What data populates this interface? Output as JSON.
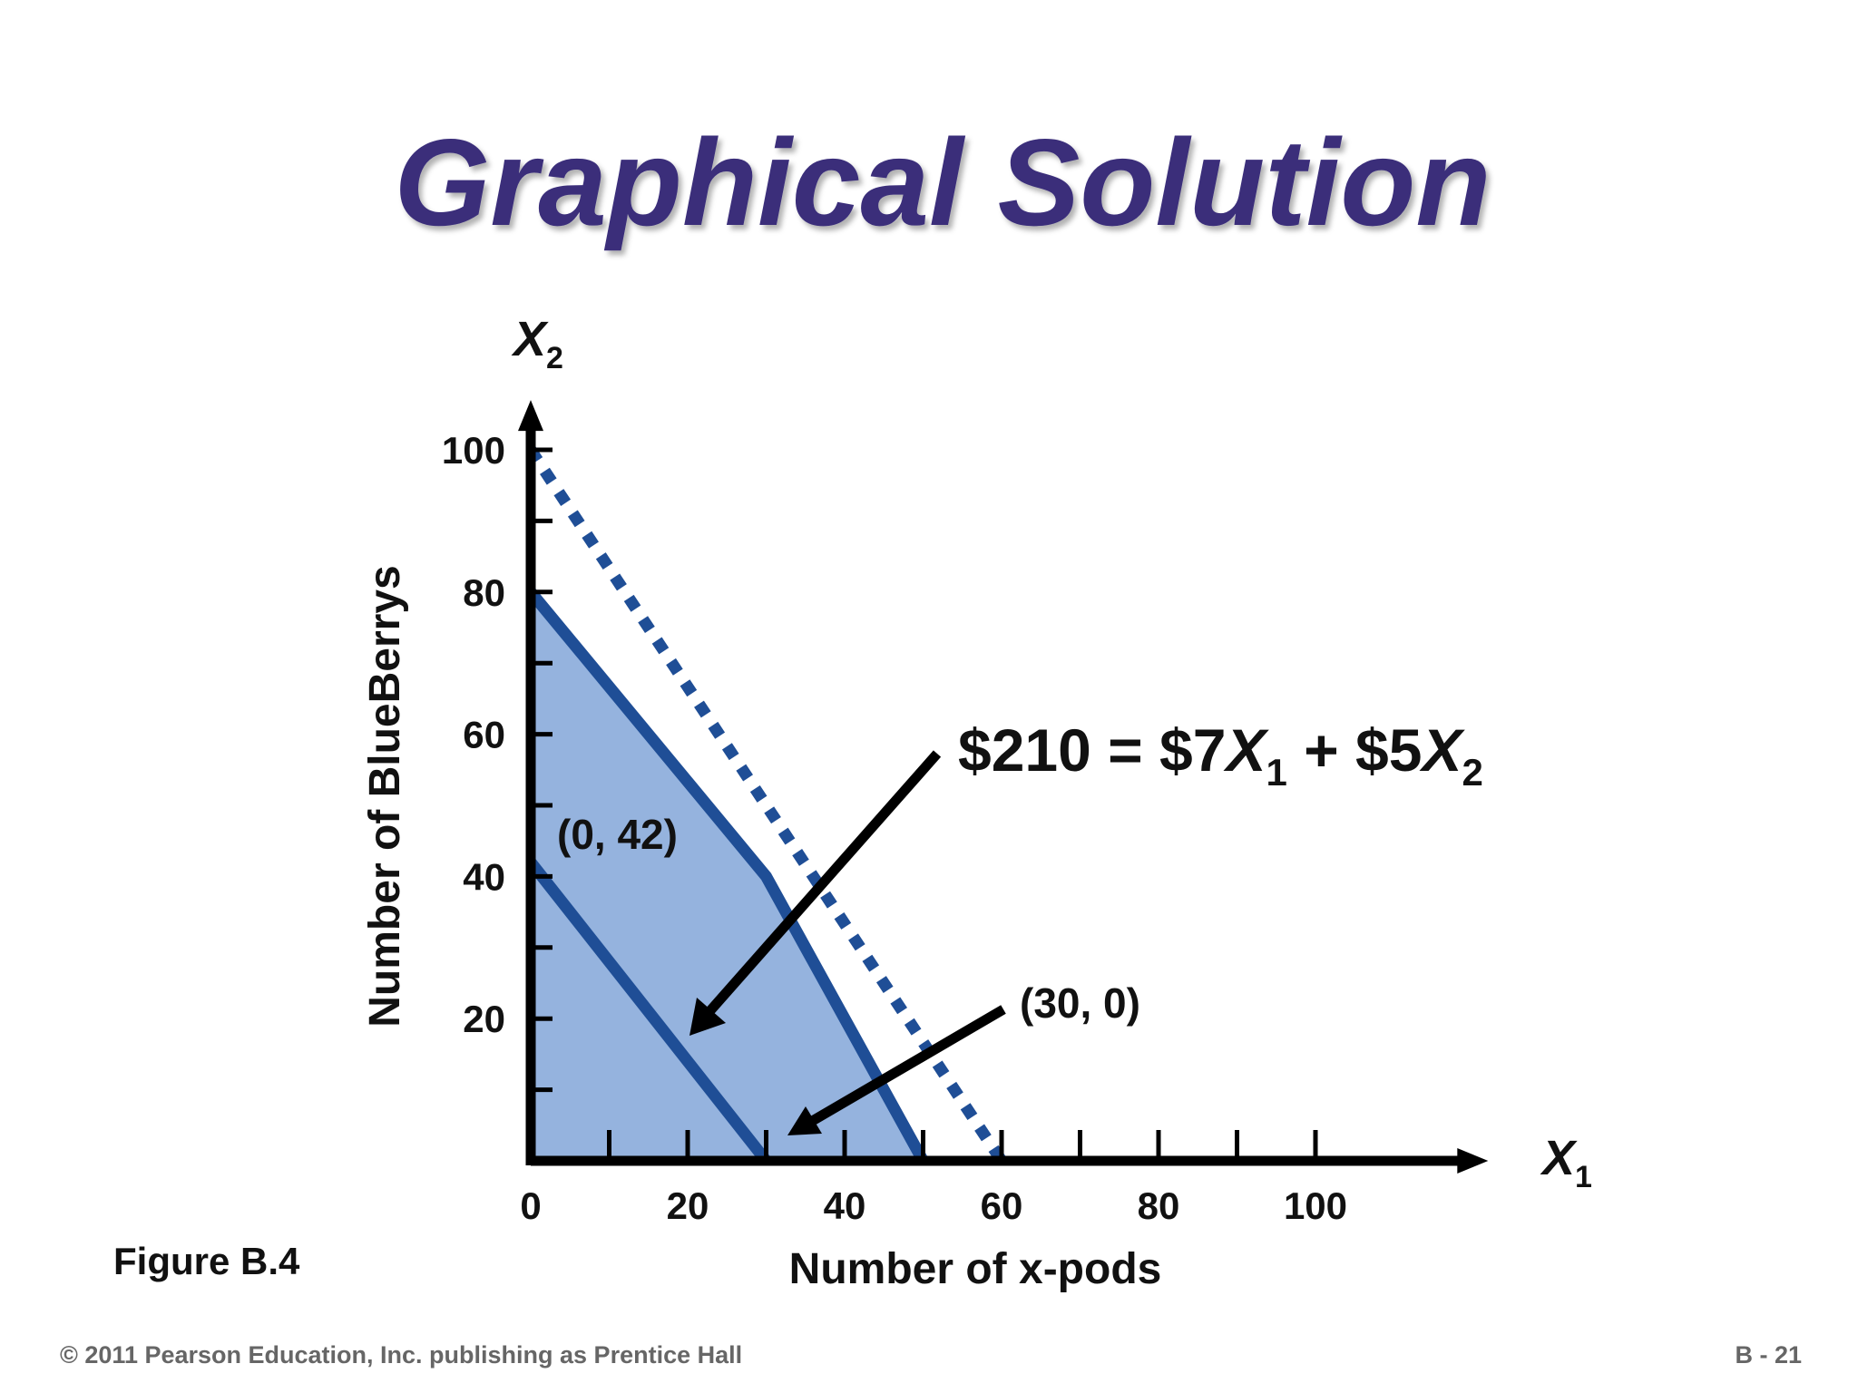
{
  "title": "Graphical Solution",
  "figure_label": "Figure B.4",
  "footer": {
    "copyright": "© 2011 Pearson Education, Inc. publishing as Prentice Hall",
    "page": "B - 21"
  },
  "chart_data": {
    "type": "lp",
    "x_axis_name": {
      "letter": "X",
      "sub": "1"
    },
    "y_axis_name": {
      "letter": "X",
      "sub": "2"
    },
    "xlabel": "Number of x-pods",
    "ylabel": "Number of BlueBerrys",
    "xlim": [
      0,
      122
    ],
    "ylim": [
      0,
      107
    ],
    "xticks": [
      0,
      20,
      40,
      60,
      80,
      100
    ],
    "yticks": [
      20,
      40,
      60,
      80,
      100
    ],
    "xminor": [
      10,
      30,
      50,
      70,
      90
    ],
    "yminor": [
      10,
      30,
      50,
      70,
      90
    ],
    "region": {
      "color": "#95b3de",
      "x": [
        0,
        0,
        30,
        50
      ],
      "y": [
        0,
        80,
        40,
        0
      ]
    },
    "constraint": {
      "color": "#1f4e96",
      "x": [
        0,
        30,
        50
      ],
      "y": [
        80,
        40,
        0
      ]
    },
    "dotted": {
      "color": "#1f4e96",
      "x": [
        0,
        60
      ],
      "y": [
        100,
        0
      ]
    },
    "isoprofit": {
      "color": "#1f4e96",
      "x": [
        0,
        30
      ],
      "y": [
        42,
        0
      ]
    },
    "annotations": [
      "(0, 42)",
      "(30, 0)"
    ],
    "equation": [
      "$210 = $7",
      "X",
      "1",
      " + $5",
      "X",
      "2"
    ]
  }
}
